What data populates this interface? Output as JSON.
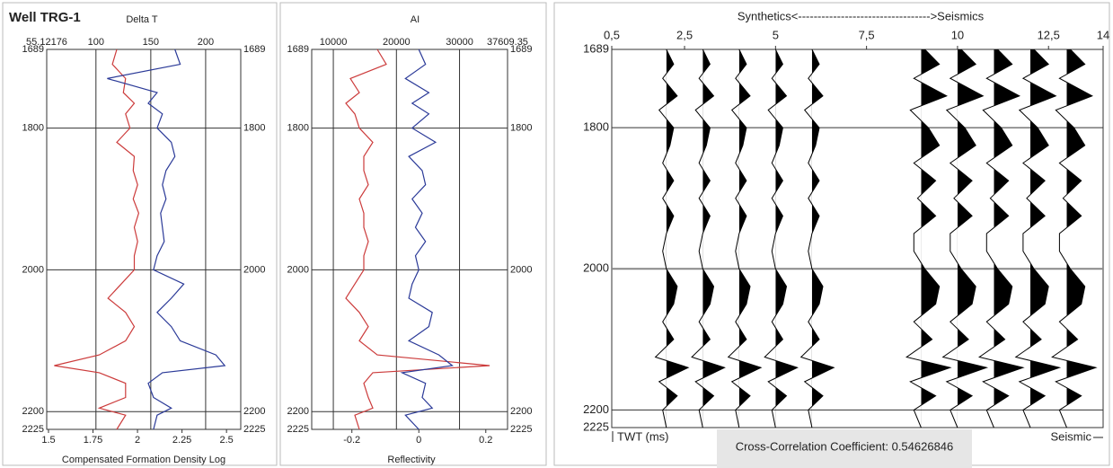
{
  "header": {
    "title": "Well TRG-1"
  },
  "chart_data": [
    {
      "type": "log",
      "title": "Delta T",
      "xlabel": "Compensated Formation Density Log",
      "y": [
        1689,
        1710,
        1730,
        1750,
        1765,
        1780,
        1800,
        1820,
        1840,
        1860,
        1880,
        1900,
        1920,
        1940,
        1960,
        1980,
        2000,
        2020,
        2040,
        2060,
        2080,
        2100,
        2120,
        2135,
        2145,
        2160,
        2180,
        2195,
        2205,
        2225
      ],
      "ylim": [
        1689,
        2225
      ],
      "yticks": [
        1689,
        1800,
        2000,
        2200,
        2225
      ],
      "xlim_top": [
        55.12176,
        232
      ],
      "xticks_top": [
        55.12176,
        100,
        150,
        200
      ],
      "xlim": [
        1.49,
        2.58
      ],
      "xticks": [
        1.5,
        1.75,
        2,
        2.25,
        2.5
      ],
      "series": [
        {
          "color": "#cc3b3b",
          "axis": "top",
          "values": [
            119,
            115,
            127,
            125,
            135,
            127,
            131,
            119,
            135,
            134,
            138,
            134,
            139,
            135,
            138,
            135,
            135,
            123,
            111,
            127,
            135,
            127,
            103,
            62,
            103,
            127,
            127,
            103,
            127,
            119
          ]
        },
        {
          "color": "#2b3a98",
          "axis": "bottom",
          "values": [
            2.21,
            2.24,
            1.83,
            2.11,
            2.06,
            2.14,
            2.11,
            2.19,
            2.21,
            2.16,
            2.14,
            2.16,
            2.13,
            2.14,
            2.15,
            2.11,
            2.09,
            2.26,
            2.19,
            2.11,
            2.19,
            2.24,
            2.44,
            2.49,
            2.14,
            2.06,
            2.09,
            2.19,
            2.11,
            2.09
          ]
        }
      ]
    },
    {
      "type": "log",
      "title": "AI",
      "xlabel": "Reflectivity",
      "y": [
        1689,
        1710,
        1730,
        1750,
        1765,
        1780,
        1800,
        1820,
        1840,
        1860,
        1880,
        1900,
        1920,
        1940,
        1960,
        1980,
        2000,
        2020,
        2040,
        2060,
        2080,
        2100,
        2120,
        2135,
        2145,
        2160,
        2180,
        2195,
        2205,
        2225
      ],
      "ylim": [
        1689,
        2225
      ],
      "yticks": [
        1689,
        1800,
        2000,
        2200,
        2225
      ],
      "xlim_top": [
        6575,
        37609.35
      ],
      "xticks_top": [
        10000,
        20000,
        30000,
        37609.35
      ],
      "xlim": [
        -0.32,
        0.265
      ],
      "xticks": [
        -0.2,
        0,
        0.2
      ],
      "series": [
        {
          "color": "#cc3b3b",
          "axis": "top",
          "values": [
            16970,
            18390,
            12700,
            14120,
            11990,
            13410,
            14120,
            16260,
            14830,
            14830,
            15540,
            14120,
            14830,
            14830,
            15540,
            14830,
            14830,
            13410,
            11990,
            14120,
            15540,
            14120,
            16970,
            34770,
            16260,
            14830,
            15540,
            16260,
            13410,
            14120
          ]
        },
        {
          "color": "#2b3a98",
          "axis": "bottom",
          "values": [
            0,
            0.02,
            -0.04,
            0.03,
            -0.02,
            0.03,
            -0.02,
            0.05,
            -0.03,
            0.01,
            0.02,
            -0.02,
            0.01,
            -0.01,
            0.02,
            -0.01,
            0,
            -0.02,
            -0.03,
            0.04,
            0.03,
            -0.03,
            0.06,
            0.1,
            -0.05,
            0.02,
            0.01,
            0.04,
            -0.04,
            0
          ]
        }
      ]
    },
    {
      "type": "wiggle",
      "title": "Synthetics<---------------------------------->Seismics",
      "ylabel": "TWT (ms)",
      "xlabel": "Seismic",
      "annotation": "Cross-Correlation Coefficient: 0.54626846",
      "y": [
        1689,
        1710,
        1730,
        1755,
        1775,
        1800,
        1825,
        1850,
        1875,
        1900,
        1925,
        1950,
        1975,
        2000,
        2025,
        2050,
        2075,
        2100,
        2125,
        2140,
        2160,
        2180,
        2200,
        2225
      ],
      "ylim": [
        1689,
        2225
      ],
      "yticks": [
        1689,
        1800,
        2000,
        2200,
        2225
      ],
      "xlim": [
        0.5,
        14
      ],
      "xticks": [
        {
          "value": 0.5,
          "label": "0,5"
        },
        {
          "value": 2.5,
          "label": "2,5"
        },
        5,
        {
          "value": 7.5,
          "label": "7,5"
        },
        10,
        {
          "value": 12.5,
          "label": "12,5"
        },
        14
      ],
      "color": "#000000",
      "traces": [
        {
          "x": 2,
          "values": [
            0,
            0.2,
            -0.1,
            0.3,
            -0.2,
            0.2,
            0.1,
            -0.1,
            0.2,
            -0.1,
            0.2,
            0,
            -0.1,
            0,
            0.3,
            0.2,
            -0.1,
            0.2,
            -0.3,
            0.6,
            -0.2,
            0.3,
            -0.1,
            0
          ]
        },
        {
          "x": 3,
          "values": [
            0,
            0.2,
            -0.1,
            0.3,
            -0.2,
            0.2,
            0.1,
            -0.1,
            0.2,
            -0.1,
            0.2,
            0,
            -0.1,
            0,
            0.3,
            0.2,
            -0.1,
            0.2,
            -0.3,
            0.6,
            -0.2,
            0.3,
            -0.1,
            0
          ]
        },
        {
          "x": 4,
          "values": [
            0,
            0.2,
            -0.1,
            0.3,
            -0.2,
            0.2,
            0.1,
            -0.1,
            0.2,
            -0.1,
            0.2,
            0,
            -0.1,
            0,
            0.3,
            0.2,
            -0.1,
            0.2,
            -0.3,
            0.6,
            -0.2,
            0.3,
            -0.1,
            0
          ]
        },
        {
          "x": 5,
          "values": [
            0,
            0.2,
            -0.1,
            0.3,
            -0.2,
            0.2,
            0.1,
            -0.1,
            0.2,
            -0.1,
            0.2,
            0,
            -0.1,
            0,
            0.3,
            0.2,
            -0.1,
            0.2,
            -0.3,
            0.6,
            -0.2,
            0.3,
            -0.1,
            0
          ]
        },
        {
          "x": 6,
          "values": [
            0,
            0.2,
            -0.1,
            0.3,
            -0.2,
            0.2,
            0.1,
            -0.1,
            0.2,
            -0.1,
            0.2,
            0,
            -0.1,
            0,
            0.3,
            0.2,
            -0.1,
            0.2,
            -0.3,
            0.6,
            -0.2,
            0.3,
            -0.1,
            0
          ]
        },
        {
          "x": 9,
          "values": [
            0.1,
            0.5,
            -0.2,
            0.7,
            -0.3,
            0.2,
            0.5,
            -0.2,
            0.4,
            -0.1,
            0.4,
            -0.2,
            -0.2,
            0.1,
            0.5,
            0.4,
            -0.2,
            0.3,
            -0.4,
            0.8,
            -0.3,
            0.4,
            -0.2,
            0
          ]
        },
        {
          "x": 10,
          "values": [
            0.1,
            0.5,
            -0.2,
            0.7,
            -0.3,
            0.2,
            0.5,
            -0.2,
            0.4,
            -0.1,
            0.4,
            -0.2,
            -0.2,
            0.1,
            0.5,
            0.4,
            -0.2,
            0.3,
            -0.4,
            0.8,
            -0.3,
            0.4,
            -0.2,
            0
          ]
        },
        {
          "x": 11,
          "values": [
            0.1,
            0.5,
            -0.2,
            0.7,
            -0.3,
            0.2,
            0.5,
            -0.2,
            0.4,
            -0.1,
            0.4,
            -0.2,
            -0.2,
            0.1,
            0.5,
            0.4,
            -0.2,
            0.3,
            -0.4,
            0.8,
            -0.3,
            0.4,
            -0.2,
            0
          ]
        },
        {
          "x": 12,
          "values": [
            0.1,
            0.5,
            -0.2,
            0.7,
            -0.3,
            0.2,
            0.5,
            -0.2,
            0.4,
            -0.1,
            0.4,
            -0.2,
            -0.2,
            0.1,
            0.5,
            0.4,
            -0.2,
            0.3,
            -0.4,
            0.8,
            -0.3,
            0.4,
            -0.2,
            0
          ]
        },
        {
          "x": 13,
          "values": [
            0.1,
            0.5,
            -0.2,
            0.7,
            -0.3,
            0.2,
            0.5,
            -0.2,
            0.4,
            -0.1,
            0.4,
            -0.2,
            -0.2,
            0.1,
            0.5,
            0.4,
            -0.2,
            0.3,
            -0.4,
            0.8,
            -0.3,
            0.4,
            -0.2,
            0
          ]
        }
      ]
    }
  ]
}
